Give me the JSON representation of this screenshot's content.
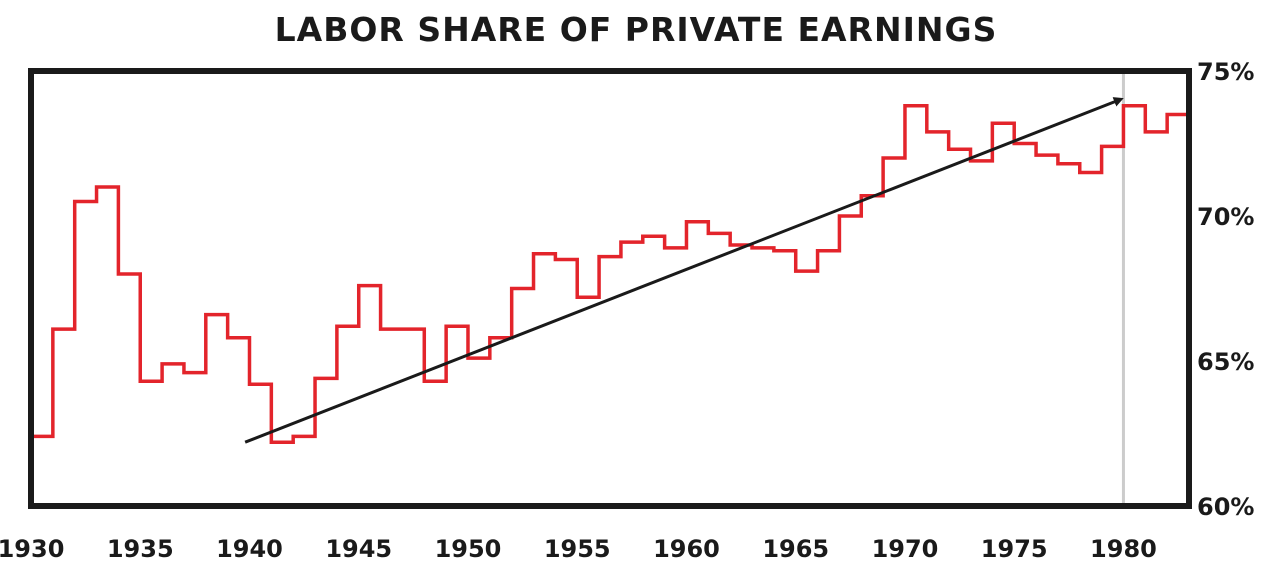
{
  "chart_data": {
    "type": "line",
    "title": "LABOR SHARE OF PRIVATE EARNINGS",
    "xlabel": "",
    "ylabel": "",
    "xlim": [
      1930,
      1983
    ],
    "ylim": [
      60,
      75
    ],
    "x_ticks": [
      "1930",
      "1935",
      "1940",
      "1945",
      "1950",
      "1955",
      "1960",
      "1965",
      "1970",
      "1975",
      "1980"
    ],
    "y_ticks": [
      "75%",
      "70%",
      "65%",
      "60%"
    ],
    "y_axis_side": "right",
    "grid": false,
    "series": [
      {
        "color": "#e3242b",
        "step": true,
        "x": [
          1930,
          1931,
          1932,
          1933,
          1934,
          1935,
          1936,
          1937,
          1938,
          1939,
          1940,
          1941,
          1942,
          1943,
          1944,
          1945,
          1946,
          1947,
          1948,
          1949,
          1950,
          1951,
          1952,
          1953,
          1954,
          1955,
          1956,
          1957,
          1958,
          1959,
          1960,
          1961,
          1962,
          1963,
          1964,
          1965,
          1966,
          1967,
          1968,
          1969,
          1970,
          1971,
          1972,
          1973,
          1974,
          1975,
          1976,
          1977,
          1978,
          1979,
          1980,
          1981,
          1982
        ],
        "values": [
          62.4,
          66.1,
          70.5,
          71.0,
          68.0,
          64.3,
          64.9,
          64.6,
          66.6,
          65.8,
          64.2,
          62.2,
          62.4,
          64.4,
          66.2,
          67.6,
          66.1,
          66.1,
          64.3,
          66.2,
          65.1,
          65.8,
          67.5,
          68.7,
          68.5,
          67.2,
          68.6,
          69.1,
          69.3,
          68.9,
          69.8,
          69.4,
          69.0,
          68.9,
          68.8,
          68.1,
          68.8,
          70.0,
          70.7,
          72.0,
          73.8,
          72.9,
          72.3,
          71.9,
          73.2,
          72.5,
          72.1,
          71.8,
          71.5,
          72.4,
          73.8,
          72.9,
          73.5
        ]
      }
    ],
    "annotations": [
      {
        "type": "arrow",
        "from": [
          1939.8,
          62.2
        ],
        "to": [
          1979.8,
          74.0
        ],
        "color": "#1a1a1a"
      },
      {
        "type": "vertical_line",
        "x": 1980,
        "color": "#cccccc"
      }
    ]
  }
}
